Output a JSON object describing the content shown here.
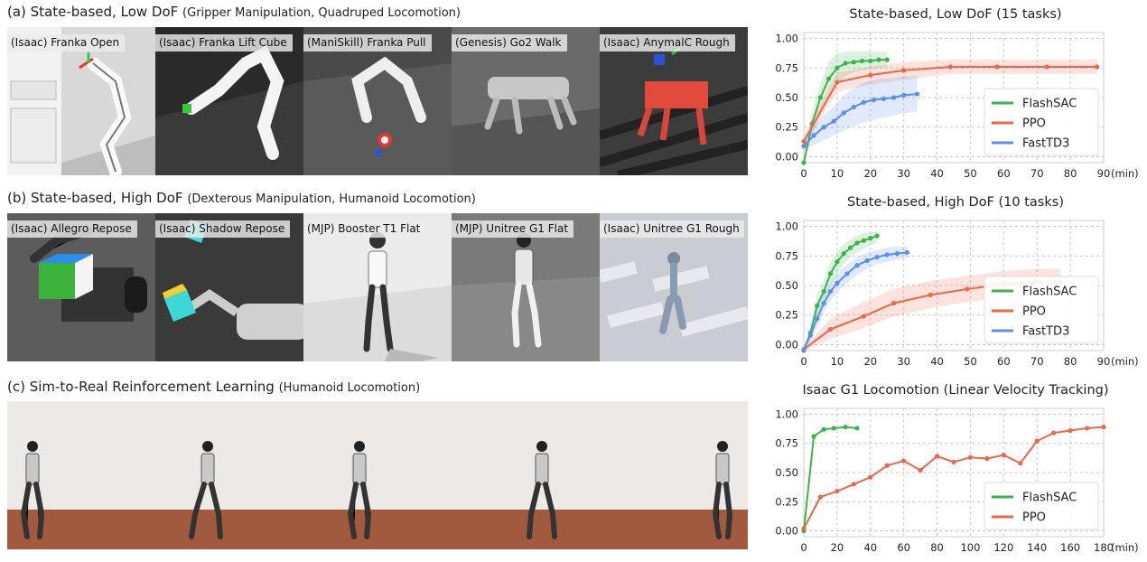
{
  "sections": [
    {
      "title": "(a) State-based, Low DoF",
      "subtitle": "(Gripper Manipulation, Quadruped Locomotion)",
      "tiles": [
        "(Isaac) Franka Open",
        "(Isaac) Franka Lift Cube",
        "(ManiSkill) Franka Pull",
        "(Genesis) Go2 Walk",
        "(Isaac) AnymalC Rough"
      ]
    },
    {
      "title": "(b) State-based, High DoF",
      "subtitle": "(Dexterous Manipulation, Humanoid Locomotion)",
      "tiles": [
        "(Isaac) Allegro Repose",
        "(Isaac) Shadow Repose",
        "(MJP) Booster T1 Flat",
        "(MJP) Unitree G1 Flat",
        "(Isaac) Unitree G1 Rough"
      ]
    },
    {
      "title": "(c) Sim-to-Real Reinforcement Learning",
      "subtitle": "(Humanoid Locomotion)",
      "tiles": [
        "",
        "",
        "",
        "",
        ""
      ]
    }
  ],
  "colors": {
    "FlashSAC": "#3cb44b",
    "PPO": "#ef6548",
    "FastTD3": "#5b8def"
  },
  "chart_data": [
    {
      "type": "line",
      "title": "State-based, Low DoF (15 tasks)",
      "x_unit": "(min)",
      "xlim": [
        0,
        90
      ],
      "ylim": [
        0,
        1.0
      ],
      "xticks": [
        0,
        10,
        20,
        30,
        40,
        50,
        60,
        70,
        80,
        90
      ],
      "xtick_labels": [
        "0",
        "10",
        "20",
        "30",
        "40",
        "50",
        "60",
        "70",
        "80",
        "90"
      ],
      "yticks": [
        "0.00",
        "0.25",
        "0.50",
        "0.75",
        "1.00"
      ],
      "grid": true,
      "legend": "right",
      "series": [
        {
          "name": "FlashSAC",
          "x": [
            0,
            2.5,
            5,
            7.5,
            10,
            12.5,
            15,
            17.5,
            20,
            22.5,
            25
          ],
          "y": [
            -0.05,
            0.28,
            0.5,
            0.66,
            0.75,
            0.79,
            0.8,
            0.81,
            0.81,
            0.82,
            0.82
          ],
          "lo": [
            -0.05,
            0.18,
            0.36,
            0.52,
            0.62,
            0.68,
            0.71,
            0.73,
            0.74,
            0.75,
            0.76
          ],
          "hi": [
            -0.05,
            0.38,
            0.62,
            0.8,
            0.87,
            0.89,
            0.89,
            0.89,
            0.89,
            0.89,
            0.89
          ]
        },
        {
          "name": "PPO",
          "x": [
            0,
            10,
            20,
            30,
            44,
            58,
            73,
            88
          ],
          "y": [
            0.13,
            0.63,
            0.69,
            0.73,
            0.76,
            0.76,
            0.76,
            0.76
          ],
          "lo": [
            0.09,
            0.55,
            0.61,
            0.65,
            0.7,
            0.7,
            0.7,
            0.7
          ],
          "hi": [
            0.18,
            0.71,
            0.76,
            0.8,
            0.82,
            0.82,
            0.82,
            0.82
          ]
        },
        {
          "name": "FastTD3",
          "x": [
            0,
            3,
            6,
            9,
            12,
            15,
            18,
            21,
            24,
            27,
            30,
            34
          ],
          "y": [
            0.09,
            0.18,
            0.25,
            0.3,
            0.37,
            0.42,
            0.46,
            0.48,
            0.49,
            0.5,
            0.52,
            0.53
          ],
          "lo": [
            0.05,
            0.1,
            0.14,
            0.18,
            0.22,
            0.26,
            0.29,
            0.31,
            0.33,
            0.35,
            0.37,
            0.38
          ],
          "hi": [
            0.14,
            0.26,
            0.35,
            0.43,
            0.52,
            0.58,
            0.63,
            0.65,
            0.66,
            0.67,
            0.68,
            0.68
          ]
        }
      ]
    },
    {
      "type": "line",
      "title": "State-based, High DoF (10 tasks)",
      "x_unit": "(min)",
      "xlim": [
        0,
        90
      ],
      "ylim": [
        0,
        1.0
      ],
      "xticks": [
        0,
        10,
        20,
        30,
        40,
        50,
        60,
        70,
        80,
        90
      ],
      "xtick_labels": [
        "0",
        "10",
        "20",
        "30",
        "40",
        "50",
        "60",
        "70",
        "80",
        "90"
      ],
      "yticks": [
        "0.00",
        "0.25",
        "0.50",
        "0.75",
        "1.00"
      ],
      "grid": true,
      "legend": "right",
      "series": [
        {
          "name": "FlashSAC",
          "x": [
            0,
            2,
            4,
            6,
            8,
            10,
            12,
            14,
            16,
            18,
            20,
            22
          ],
          "y": [
            -0.05,
            0.1,
            0.33,
            0.45,
            0.6,
            0.7,
            0.77,
            0.82,
            0.86,
            0.88,
            0.9,
            0.92
          ],
          "lo": [
            -0.05,
            0.05,
            0.24,
            0.36,
            0.5,
            0.6,
            0.68,
            0.74,
            0.78,
            0.81,
            0.84,
            0.86
          ],
          "hi": [
            -0.05,
            0.16,
            0.42,
            0.55,
            0.7,
            0.79,
            0.85,
            0.89,
            0.92,
            0.94,
            0.95,
            0.96
          ]
        },
        {
          "name": "PPO",
          "x": [
            0,
            8,
            18,
            27,
            38,
            49,
            60,
            70,
            77
          ],
          "y": [
            -0.04,
            0.13,
            0.24,
            0.35,
            0.42,
            0.47,
            0.51,
            0.53,
            0.53
          ],
          "lo": [
            -0.05,
            0.05,
            0.14,
            0.24,
            0.31,
            0.36,
            0.4,
            0.42,
            0.42
          ],
          "hi": [
            -0.02,
            0.22,
            0.36,
            0.47,
            0.54,
            0.58,
            0.62,
            0.64,
            0.64
          ]
        },
        {
          "name": "FastTD3",
          "x": [
            0,
            2,
            4,
            6,
            8,
            10,
            13,
            16,
            19,
            22,
            25,
            28,
            31
          ],
          "y": [
            -0.04,
            0.08,
            0.22,
            0.35,
            0.45,
            0.52,
            0.6,
            0.67,
            0.71,
            0.74,
            0.76,
            0.77,
            0.78
          ],
          "lo": [
            -0.05,
            0.03,
            0.15,
            0.27,
            0.37,
            0.44,
            0.52,
            0.59,
            0.64,
            0.68,
            0.7,
            0.72,
            0.73
          ],
          "hi": [
            -0.03,
            0.13,
            0.29,
            0.43,
            0.53,
            0.6,
            0.68,
            0.74,
            0.78,
            0.8,
            0.82,
            0.83,
            0.83
          ]
        }
      ]
    },
    {
      "type": "line",
      "title": "Isaac G1 Locomotion (Linear Velocity Tracking)",
      "x_unit": "(min)",
      "xlim": [
        0,
        180
      ],
      "ylim": [
        0,
        1.0
      ],
      "xticks": [
        0,
        20,
        40,
        60,
        80,
        100,
        120,
        140,
        160,
        180
      ],
      "xtick_labels": [
        "0",
        "20",
        "40",
        "60",
        "80",
        "100",
        "120",
        "140",
        "160",
        "180"
      ],
      "yticks": [
        "0.00",
        "0.25",
        "0.50",
        "0.75",
        "1.00"
      ],
      "grid": true,
      "legend": "lower-right",
      "series": [
        {
          "name": "FlashSAC",
          "x": [
            0,
            6,
            12,
            18,
            25,
            32
          ],
          "y": [
            0.0,
            0.81,
            0.87,
            0.88,
            0.89,
            0.88
          ],
          "lo": null,
          "hi": null
        },
        {
          "name": "PPO",
          "x": [
            0,
            10,
            20,
            30,
            40,
            50,
            60,
            70,
            80,
            90,
            100,
            110,
            120,
            130,
            140,
            150,
            160,
            170,
            180
          ],
          "y": [
            0.02,
            0.29,
            0.34,
            0.4,
            0.46,
            0.56,
            0.6,
            0.52,
            0.64,
            0.59,
            0.63,
            0.62,
            0.65,
            0.58,
            0.77,
            0.84,
            0.86,
            0.88,
            0.89
          ],
          "lo": null,
          "hi": null
        }
      ]
    }
  ]
}
